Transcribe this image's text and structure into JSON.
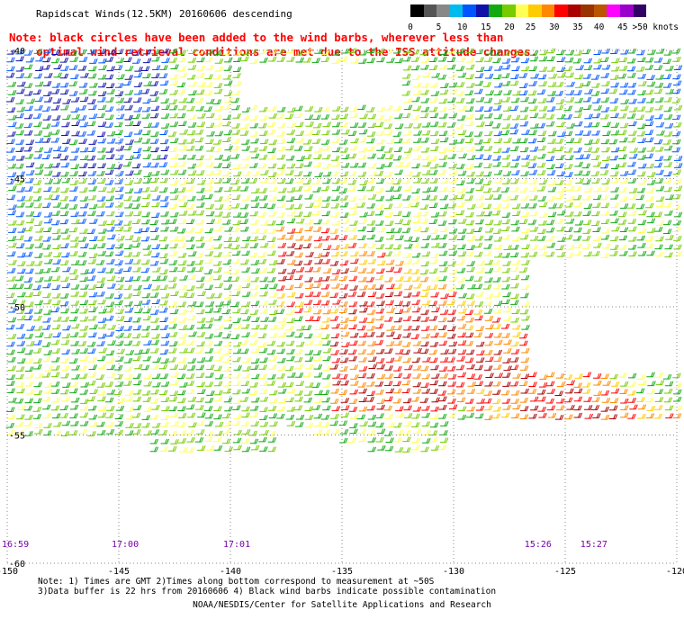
{
  "title": "Rapidscat Winds(12.5KM) 20160606 descending",
  "note": {
    "line1": "Note: black circles have been added to the wind barbs, wherever less than",
    "line2": "optimal wind retrieval conditions are met due to the ISS attitude changes."
  },
  "colorbar": {
    "colors": [
      "#000000",
      "#555555",
      "#888888",
      "#00bbee",
      "#0055ff",
      "#1111aa",
      "#11aa11",
      "#77cc00",
      "#ffff55",
      "#ffcc00",
      "#ff8800",
      "#ff0000",
      "#aa0000",
      "#993300",
      "#bb5500",
      "#ff00ff",
      "#9900cc",
      "#330066"
    ],
    "labels": [
      "0",
      "5",
      "10",
      "15",
      "20",
      "25",
      "30",
      "35",
      "40",
      "45",
      ">50 knots"
    ],
    "label_offsets_pct": [
      0,
      12,
      22,
      32,
      42,
      51,
      61,
      71,
      80,
      90,
      100
    ]
  },
  "axes": {
    "lon_labels": [
      "-150",
      "-145",
      "-140",
      "-135",
      "-130",
      "-125",
      "-120"
    ],
    "lon_values": [
      -150,
      -145,
      -140,
      -135,
      -130,
      -125,
      -120
    ],
    "lat_labels": [
      "-40",
      "-45",
      "-50",
      "-55",
      "-60"
    ],
    "lat_values": [
      -40,
      -45,
      -50,
      -55,
      -60
    ]
  },
  "times": [
    {
      "label": "16:59",
      "lon": -150
    },
    {
      "label": "17:00",
      "lon": -145
    },
    {
      "label": "17:01",
      "lon": -140
    },
    {
      "label": "15:26",
      "lon": -126.5
    },
    {
      "label": "15:27",
      "lon": -124
    }
  ],
  "footer": {
    "line1": "Note: 1) Times are GMT 2)Times along bottom correspond to measurement at ~50S",
    "line2": "3)Data buffer is 22 hrs from 20160606 4) Black wind barbs indicate possible contamination",
    "credit": "NOAA/NESDIS/Center for Satellite Applications and Research"
  },
  "style": {
    "time_color": "#7700aa",
    "grid_color": "#888888"
  }
}
